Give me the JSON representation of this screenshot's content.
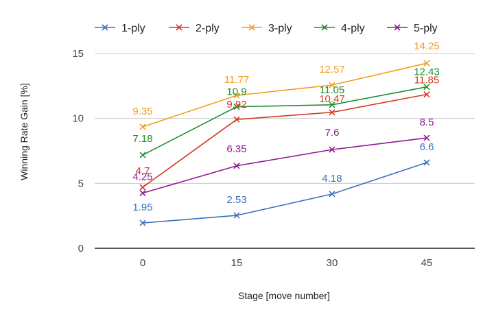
{
  "chart_data": {
    "type": "line",
    "title": "",
    "xlabel": "Stage [move number]",
    "ylabel": "Winning Rate Gain [%]",
    "categories": [
      "0",
      "15",
      "30",
      "45"
    ],
    "ylim": [
      0,
      15
    ],
    "yticks": [
      0,
      5,
      10,
      15
    ],
    "grid": true,
    "legend_position": "top",
    "series": [
      {
        "name": "1-ply",
        "color": "#3c6fbf",
        "values": [
          1.95,
          2.53,
          4.18,
          6.6
        ],
        "labels": [
          "1.95",
          "2.53",
          "4.18",
          "6.6"
        ]
      },
      {
        "name": "2-ply",
        "color": "#d5361d",
        "values": [
          4.7,
          9.92,
          10.47,
          11.85
        ],
        "labels": [
          "4.7",
          "9.92",
          "10.47",
          "11.85"
        ]
      },
      {
        "name": "3-ply",
        "color": "#f29d1b",
        "values": [
          9.35,
          11.77,
          12.57,
          14.25
        ],
        "labels": [
          "9.35",
          "11.77",
          "12.57",
          "14.25"
        ]
      },
      {
        "name": "4-ply",
        "color": "#1e8e2e",
        "values": [
          7.18,
          10.9,
          11.05,
          12.43
        ],
        "labels": [
          "7.18",
          "10.9",
          "11.05",
          "12.43"
        ]
      },
      {
        "name": "5-ply",
        "color": "#8e1a94",
        "values": [
          4.25,
          6.35,
          7.6,
          8.5
        ],
        "labels": [
          "4.25",
          "6.35",
          "7.6",
          "8.5"
        ]
      }
    ]
  }
}
